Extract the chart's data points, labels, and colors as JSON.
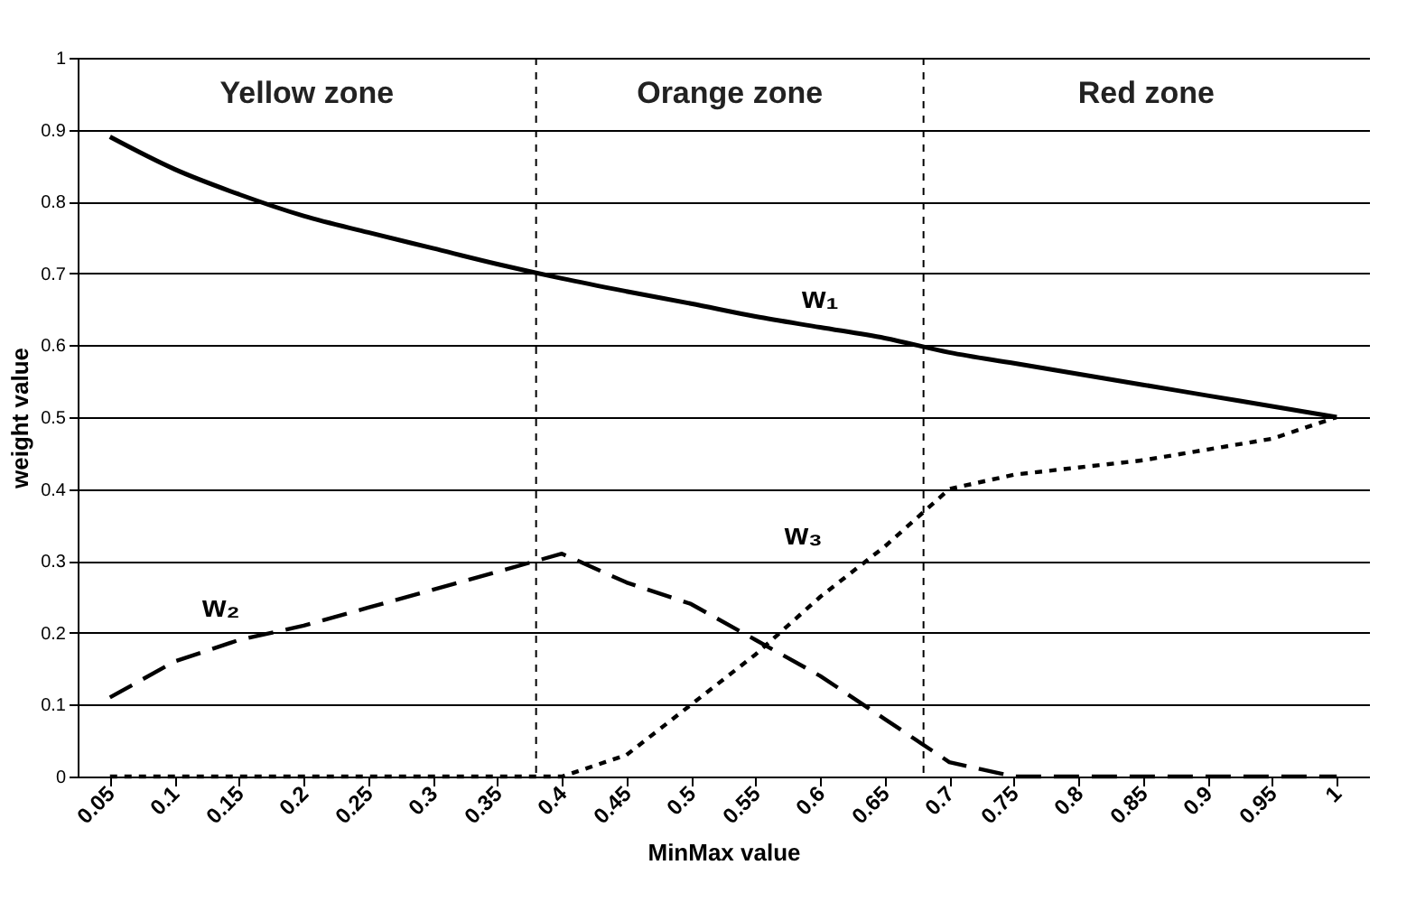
{
  "chart_data": {
    "type": "line",
    "xlabel": "MinMax value",
    "ylabel": "weight value",
    "x": [
      0.05,
      0.1,
      0.15,
      0.2,
      0.25,
      0.3,
      0.35,
      0.4,
      0.45,
      0.5,
      0.55,
      0.6,
      0.65,
      0.7,
      0.75,
      0.8,
      0.85,
      0.9,
      0.95,
      1
    ],
    "series": [
      {
        "name": "w₁",
        "color": "#000000",
        "line_style": "solid",
        "values": [
          0.89,
          0.845,
          0.81,
          0.78,
          0.757,
          0.735,
          0.713,
          0.693,
          0.675,
          0.658,
          0.64,
          0.625,
          0.61,
          0.59,
          0.575,
          0.56,
          0.545,
          0.53,
          0.515,
          0.5
        ]
      },
      {
        "name": "w₂",
        "color": "#000000",
        "line_style": "dashed",
        "values": [
          0.11,
          0.16,
          0.19,
          0.21,
          0.235,
          0.26,
          0.285,
          0.31,
          0.27,
          0.24,
          0.19,
          0.14,
          0.08,
          0.02,
          0,
          0,
          0,
          0,
          0,
          0
        ]
      },
      {
        "name": "w₃",
        "color": "#000000",
        "line_style": "dotted",
        "values": [
          0,
          0,
          0,
          0,
          0,
          0,
          0,
          0,
          0.03,
          0.1,
          0.17,
          0.25,
          0.32,
          0.4,
          0.42,
          0.43,
          0.44,
          0.455,
          0.47,
          0.5
        ]
      }
    ],
    "xlim": [
      0.025,
      1.025
    ],
    "xticks": [
      0.05,
      0.1,
      0.15,
      0.2,
      0.25,
      0.3,
      0.35,
      0.4,
      0.45,
      0.5,
      0.55,
      0.6,
      0.65,
      0.7,
      0.75,
      0.8,
      0.85,
      0.9,
      0.95,
      1
    ],
    "ylim": [
      0,
      1
    ],
    "yticks": [
      0,
      0.1,
      0.2,
      0.3,
      0.4,
      0.5,
      0.6,
      0.7,
      0.8,
      0.9,
      1
    ],
    "grid": "y",
    "marker": "none",
    "ref_lines": [
      {
        "axis": "x",
        "value": 0.38,
        "line_style": "dotted",
        "color": "#000000"
      },
      {
        "axis": "x",
        "value": 0.68,
        "line_style": "dotted",
        "color": "#000000"
      }
    ],
    "annotations": [
      "Yellow zone",
      "Orange zone",
      "Red zone"
    ]
  }
}
